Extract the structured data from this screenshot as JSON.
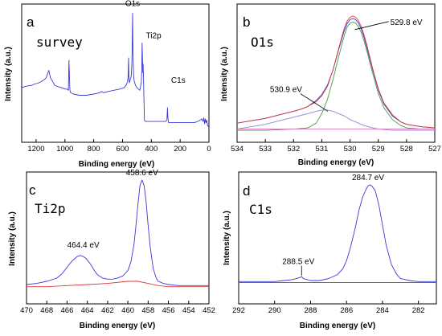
{
  "chart_data": [
    {
      "type": "line",
      "panel": "a",
      "title": "survey",
      "xlabel": "Binding energy (eV)",
      "ylabel": "Intensity (a.u.)",
      "xlim": [
        1300,
        0
      ],
      "x_reversed": true,
      "xticks": [
        1200,
        1000,
        800,
        600,
        400,
        200,
        0
      ],
      "show_y_ticks": false,
      "annotations": [
        {
          "text": "O1s",
          "x": 530,
          "y": 0.97
        },
        {
          "text": "Ti2p",
          "x": 460,
          "y": 0.74
        },
        {
          "text": "C1s",
          "x": 285,
          "y": 0.38
        }
      ],
      "series": [
        {
          "color": "#3a3ad8",
          "x": [
            1300,
            1280,
            1230,
            1210,
            1180,
            1150,
            1130,
            1112,
            1100,
            1080,
            1070,
            1050,
            1020,
            1000,
            985,
            976,
            972,
            965,
            960,
            940,
            900,
            850,
            800,
            760,
            745,
            730,
            700,
            660,
            620,
            590,
            575,
            565,
            562,
            558,
            556,
            553,
            548,
            540,
            535,
            532,
            530,
            528,
            524,
            520,
            515,
            510,
            500,
            490,
            480,
            470,
            466,
            464,
            461,
            459,
            457,
            455,
            452,
            448,
            440,
            420,
            400,
            380,
            350,
            320,
            300,
            292,
            288,
            285,
            282,
            280,
            270,
            250,
            200,
            150,
            100,
            80,
            60,
            50,
            40,
            35,
            30,
            25,
            20,
            15,
            10,
            5,
            0
          ],
          "y": [
            0.36,
            0.37,
            0.38,
            0.39,
            0.4,
            0.42,
            0.44,
            0.5,
            0.44,
            0.4,
            0.38,
            0.37,
            0.36,
            0.35,
            0.35,
            0.34,
            0.58,
            0.34,
            0.32,
            0.31,
            0.3,
            0.3,
            0.31,
            0.32,
            0.33,
            0.32,
            0.33,
            0.34,
            0.35,
            0.36,
            0.38,
            0.41,
            0.44,
            0.6,
            0.45,
            0.4,
            0.42,
            0.45,
            0.55,
            0.75,
            0.96,
            0.7,
            0.48,
            0.42,
            0.4,
            0.38,
            0.36,
            0.35,
            0.34,
            0.4,
            0.52,
            0.72,
            0.58,
            0.48,
            0.55,
            0.46,
            0.3,
            0.1,
            0.09,
            0.09,
            0.09,
            0.09,
            0.09,
            0.09,
            0.09,
            0.1,
            0.2,
            0.12,
            0.09,
            0.08,
            0.08,
            0.08,
            0.08,
            0.08,
            0.08,
            0.09,
            0.1,
            0.11,
            0.09,
            0.12,
            0.07,
            0.11,
            0.08,
            0.1,
            0.06,
            0.05,
            0.04
          ]
        }
      ]
    },
    {
      "type": "line",
      "panel": "b",
      "title": "O1s",
      "xlabel": "Binding energy (eV)",
      "ylabel": "Intensity (a.u.)",
      "xlim": [
        534,
        527
      ],
      "x_reversed": true,
      "xticks": [
        534,
        533,
        532,
        531,
        530,
        529,
        528,
        527
      ],
      "show_y_ticks": false,
      "annotations": [
        {
          "text": "529.8 eV",
          "x": 530.0,
          "y": 0.9
        },
        {
          "text": "530.9 eV",
          "x": 530.9,
          "y": 0.32
        }
      ],
      "series": [
        {
          "color": "#3a3ad8",
          "x": [
            534,
            533.5,
            533,
            532.5,
            532,
            531.7,
            531.5,
            531.2,
            531,
            530.8,
            530.6,
            530.4,
            530.2,
            530.1,
            530,
            529.9,
            529.8,
            529.7,
            529.6,
            529.5,
            529.4,
            529.2,
            529,
            528.8,
            528.5,
            528.2,
            528,
            527.5,
            527
          ],
          "y": [
            0.1,
            0.12,
            0.14,
            0.17,
            0.2,
            0.22,
            0.24,
            0.29,
            0.34,
            0.42,
            0.55,
            0.72,
            0.88,
            0.94,
            0.97,
            0.98,
            0.97,
            0.94,
            0.89,
            0.82,
            0.73,
            0.55,
            0.38,
            0.26,
            0.16,
            0.11,
            0.09,
            0.07,
            0.06
          ]
        },
        {
          "color": "#d83a3a",
          "x": [
            534,
            533.5,
            533,
            532.5,
            532,
            531.7,
            531.5,
            531.2,
            531,
            530.8,
            530.6,
            530.4,
            530.2,
            530.1,
            530,
            529.9,
            529.8,
            529.7,
            529.6,
            529.5,
            529.4,
            529.2,
            529,
            528.8,
            528.5,
            528.2,
            528,
            527.5,
            527
          ],
          "y": [
            0.1,
            0.12,
            0.14,
            0.17,
            0.2,
            0.22,
            0.24,
            0.28,
            0.33,
            0.41,
            0.55,
            0.73,
            0.9,
            0.96,
            0.99,
            1.0,
            0.99,
            0.96,
            0.91,
            0.84,
            0.75,
            0.56,
            0.39,
            0.27,
            0.17,
            0.11,
            0.09,
            0.07,
            0.06
          ]
        },
        {
          "color": "#4a9a4a",
          "x": [
            534,
            533,
            532,
            531.5,
            531.2,
            531,
            530.8,
            530.6,
            530.4,
            530.2,
            530.1,
            530,
            529.9,
            529.8,
            529.7,
            529.6,
            529.5,
            529.4,
            529.2,
            529,
            528.8,
            528.5,
            528.2,
            528,
            527.5,
            527
          ],
          "y": [
            0.04,
            0.04,
            0.05,
            0.06,
            0.1,
            0.18,
            0.3,
            0.47,
            0.66,
            0.84,
            0.91,
            0.94,
            0.95,
            0.94,
            0.91,
            0.86,
            0.79,
            0.7,
            0.52,
            0.35,
            0.23,
            0.13,
            0.08,
            0.06,
            0.05,
            0.05
          ]
        },
        {
          "color": "#8a8ad8",
          "x": [
            534,
            533.5,
            533,
            532.5,
            532,
            531.5,
            531.2,
            531,
            530.9,
            530.8,
            530.6,
            530.4,
            530.2,
            530,
            529.8,
            529.5,
            529.2,
            529,
            528.5,
            528,
            527.5,
            527
          ],
          "y": [
            0.05,
            0.07,
            0.09,
            0.12,
            0.15,
            0.18,
            0.2,
            0.21,
            0.21,
            0.21,
            0.2,
            0.18,
            0.16,
            0.13,
            0.11,
            0.08,
            0.06,
            0.05,
            0.04,
            0.04,
            0.04,
            0.04
          ]
        },
        {
          "color": "#e070c0",
          "x": [
            534,
            533,
            532,
            531,
            530,
            529,
            528,
            527
          ],
          "y": [
            0.05,
            0.05,
            0.05,
            0.05,
            0.05,
            0.05,
            0.05,
            0.05
          ]
        }
      ]
    },
    {
      "type": "line",
      "panel": "c",
      "title": "Ti2p",
      "xlabel": "Binding energy (eV)",
      "ylabel": "Intensity (a.u.)",
      "xlim": [
        470,
        452
      ],
      "x_reversed": true,
      "xticks": [
        470,
        468,
        466,
        464,
        462,
        460,
        458,
        456,
        454,
        452
      ],
      "show_y_ticks": false,
      "annotations": [
        {
          "text": "458.6 eV",
          "x": 458.6,
          "y": 1.0
        },
        {
          "text": "464.4 eV",
          "x": 464.4,
          "y": 0.33
        }
      ],
      "series": [
        {
          "color": "#3a3ad8",
          "x": [
            470,
            469,
            468,
            467,
            466.5,
            466,
            465.5,
            465,
            464.7,
            464.4,
            464.1,
            463.7,
            463.3,
            463,
            462.5,
            462,
            461.5,
            461,
            460.5,
            460,
            459.7,
            459.4,
            459.2,
            459,
            458.8,
            458.6,
            458.4,
            458.2,
            458,
            457.8,
            457.5,
            457.2,
            457,
            456.5,
            456,
            455,
            454,
            453,
            452
          ],
          "y": [
            0.03,
            0.04,
            0.06,
            0.09,
            0.13,
            0.19,
            0.25,
            0.29,
            0.3,
            0.29,
            0.27,
            0.22,
            0.16,
            0.12,
            0.09,
            0.08,
            0.08,
            0.09,
            0.11,
            0.16,
            0.24,
            0.4,
            0.58,
            0.78,
            0.95,
            1.0,
            0.95,
            0.8,
            0.58,
            0.38,
            0.18,
            0.09,
            0.06,
            0.04,
            0.03,
            0.02,
            0.02,
            0.02,
            0.02
          ]
        },
        {
          "color": "#d83a3a",
          "x": [
            470,
            468,
            466,
            464,
            462,
            460,
            459,
            458,
            457,
            456,
            454,
            452
          ],
          "y": [
            0.01,
            0.01,
            0.02,
            0.03,
            0.04,
            0.06,
            0.06,
            0.04,
            0.02,
            0.01,
            0.01,
            0.01
          ]
        }
      ]
    },
    {
      "type": "line",
      "panel": "d",
      "title": "C1s",
      "xlabel": "Binding energy (eV)",
      "ylabel": "Intensity (a.u.)",
      "xlim": [
        292,
        281
      ],
      "x_reversed": true,
      "xticks": [
        292,
        290,
        288,
        286,
        284,
        282
      ],
      "show_y_ticks": false,
      "annotations": [
        {
          "text": "284.7 eV",
          "x": 284.8,
          "y": 1.0
        },
        {
          "text": "288.5 eV",
          "x": 288.5,
          "y": 0.14
        }
      ],
      "series": [
        {
          "color": "#3a3ad8",
          "x": [
            292,
            291,
            290,
            289.5,
            289,
            288.8,
            288.6,
            288.5,
            288.4,
            288.2,
            288,
            287.5,
            287,
            286.5,
            286.2,
            286,
            285.8,
            285.5,
            285.3,
            285.1,
            284.9,
            284.8,
            284.7,
            284.6,
            284.4,
            284.2,
            284,
            283.8,
            283.5,
            283.2,
            283,
            282.5,
            282,
            281.5,
            281
          ],
          "y": [
            0.03,
            0.03,
            0.03,
            0.04,
            0.05,
            0.06,
            0.07,
            0.08,
            0.06,
            0.05,
            0.04,
            0.04,
            0.06,
            0.1,
            0.16,
            0.24,
            0.36,
            0.58,
            0.75,
            0.88,
            0.96,
            0.99,
            1.0,
            0.99,
            0.94,
            0.8,
            0.6,
            0.4,
            0.2,
            0.1,
            0.06,
            0.04,
            0.03,
            0.03,
            0.03
          ]
        },
        {
          "color": "#d83a3a",
          "x": [
            292,
            290,
            288,
            286,
            284,
            282,
            281
          ],
          "y": [
            0.02,
            0.02,
            0.02,
            0.02,
            0.02,
            0.02,
            0.02
          ]
        }
      ]
    }
  ]
}
